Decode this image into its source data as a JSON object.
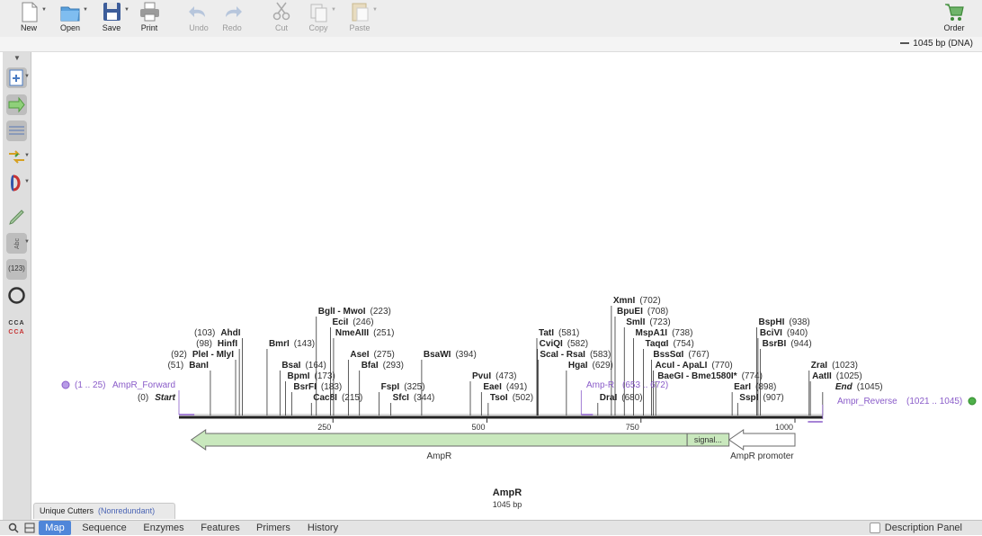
{
  "toolbar": {
    "new": "New",
    "open": "Open",
    "save": "Save",
    "print": "Print",
    "undo": "Undo",
    "redo": "Redo",
    "cut": "Cut",
    "copy": "Copy",
    "paste": "Paste",
    "order": "Order"
  },
  "seq_info": "1045 bp  (DNA)",
  "left_tools": {
    "numbers_label": "(123)",
    "bases_top": "CCA",
    "bases_bottom": "CCA"
  },
  "map": {
    "title": "AmpR",
    "size": "1045 bp",
    "ruler": [
      {
        "pos": 250,
        "label": "250"
      },
      {
        "pos": 500,
        "label": "500"
      },
      {
        "pos": 750,
        "label": "750"
      },
      {
        "pos": 1000,
        "label": "1000"
      }
    ],
    "features": [
      {
        "name": "AmpR",
        "start": 20,
        "end": 825,
        "direction": "reverse",
        "color": "#c9e8bd"
      },
      {
        "name": "signal...",
        "start": 825,
        "end": 893,
        "direction": "none",
        "color": "#c9e8bd"
      },
      {
        "name": "AmpR promoter",
        "start": 893,
        "end": 1000,
        "direction": "reverse",
        "color": "#ffffff"
      }
    ],
    "primers": [
      {
        "name": "AmpR_Forward",
        "range": "(1 .. 25)"
      },
      {
        "name": "Amp-R",
        "range": "(653 .. 672)"
      },
      {
        "name": "Ampr_Reverse",
        "range": "(1021 .. 1045)"
      }
    ],
    "start_label": "Start",
    "start_pos": "(0)",
    "end_label": "End",
    "end_pos": "(1045)",
    "enzymes": [
      {
        "name": "BanI",
        "pos": 51,
        "label": "(51)",
        "pos_side": "left"
      },
      {
        "name": "PleI - MlyI",
        "pos": 92,
        "label": "(92)",
        "pos_side": "left"
      },
      {
        "name": "HinfI",
        "pos": 98,
        "label": "(98)",
        "pos_side": "left"
      },
      {
        "name": "AhdI",
        "pos": 103,
        "label": "(103)",
        "pos_side": "left"
      },
      {
        "name": "BmrI",
        "pos": 143,
        "label": "(143)",
        "pos_side": "right"
      },
      {
        "name": "BsaI",
        "pos": 164,
        "label": "(164)",
        "pos_side": "right"
      },
      {
        "name": "BpmI",
        "pos": 173,
        "label": "(173)",
        "pos_side": "right"
      },
      {
        "name": "BsrFI",
        "pos": 183,
        "label": "(183)",
        "pos_side": "right"
      },
      {
        "name": "Cac8I",
        "pos": 215,
        "label": "(215)",
        "pos_side": "right"
      },
      {
        "name": "BglI - MwoI",
        "pos": 223,
        "label": "(223)",
        "pos_side": "right"
      },
      {
        "name": "EciI",
        "pos": 246,
        "label": "(246)",
        "pos_side": "right"
      },
      {
        "name": "NmeAIII",
        "pos": 251,
        "label": "(251)",
        "pos_side": "right"
      },
      {
        "name": "AseI",
        "pos": 275,
        "label": "(275)",
        "pos_side": "right"
      },
      {
        "name": "BfaI",
        "pos": 293,
        "label": "(293)",
        "pos_side": "right"
      },
      {
        "name": "FspI",
        "pos": 325,
        "label": "(325)",
        "pos_side": "right"
      },
      {
        "name": "SfcI",
        "pos": 344,
        "label": "(344)",
        "pos_side": "right"
      },
      {
        "name": "BsaWI",
        "pos": 394,
        "label": "(394)",
        "pos_side": "right"
      },
      {
        "name": "PvuI",
        "pos": 473,
        "label": "(473)",
        "pos_side": "right"
      },
      {
        "name": "EaeI",
        "pos": 491,
        "label": "(491)",
        "pos_side": "right"
      },
      {
        "name": "TsoI",
        "pos": 502,
        "label": "(502)",
        "pos_side": "right"
      },
      {
        "name": "TatI",
        "pos": 581,
        "label": "(581)",
        "pos_side": "right"
      },
      {
        "name": "CviQI",
        "pos": 582,
        "label": "(582)",
        "pos_side": "right"
      },
      {
        "name": "ScaI - RsaI",
        "pos": 583,
        "label": "(583)",
        "pos_side": "right"
      },
      {
        "name": "HgaI",
        "pos": 629,
        "label": "(629)",
        "pos_side": "right"
      },
      {
        "name": "DraI",
        "pos": 680,
        "label": "(680)",
        "pos_side": "right"
      },
      {
        "name": "XmnI",
        "pos": 702,
        "label": "(702)",
        "pos_side": "right"
      },
      {
        "name": "BpuEI",
        "pos": 708,
        "label": "(708)",
        "pos_side": "right"
      },
      {
        "name": "SmlI",
        "pos": 723,
        "label": "(723)",
        "pos_side": "right"
      },
      {
        "name": "MspA1I",
        "pos": 738,
        "label": "(738)",
        "pos_side": "right"
      },
      {
        "name": "TaqαI",
        "pos": 754,
        "label": "(754)",
        "pos_side": "right"
      },
      {
        "name": "BssSαI",
        "pos": 767,
        "label": "(767)",
        "pos_side": "right"
      },
      {
        "name": "AcuI - ApaLI",
        "pos": 770,
        "label": "(770)",
        "pos_side": "right"
      },
      {
        "name": "BaeGI - Bme1580I*",
        "pos": 774,
        "label": "(774)",
        "pos_side": "right"
      },
      {
        "name": "EarI",
        "pos": 898,
        "label": "(898)",
        "pos_side": "right"
      },
      {
        "name": "SspI",
        "pos": 907,
        "label": "(907)",
        "pos_side": "right"
      },
      {
        "name": "BspHI",
        "pos": 938,
        "label": "(938)",
        "pos_side": "right"
      },
      {
        "name": "BciVI",
        "pos": 940,
        "label": "(940)",
        "pos_side": "right"
      },
      {
        "name": "BsrBI",
        "pos": 944,
        "label": "(944)",
        "pos_side": "right"
      },
      {
        "name": "ZraI",
        "pos": 1023,
        "label": "(1023)",
        "pos_side": "right"
      },
      {
        "name": "AatII",
        "pos": 1025,
        "label": "(1025)",
        "pos_side": "right"
      }
    ]
  },
  "bottom": {
    "unique_cutters": "Unique Cutters",
    "nonredundant": "(Nonredundant)",
    "tabs": [
      "Map",
      "Sequence",
      "Enzymes",
      "Features",
      "Primers",
      "History"
    ],
    "active_tab": "Map",
    "description_panel": "Description Panel"
  },
  "colors": {
    "feature_green": "#c9e8bd",
    "primer_purple": "#8a5cc9",
    "active_tab": "#4f86d9"
  }
}
